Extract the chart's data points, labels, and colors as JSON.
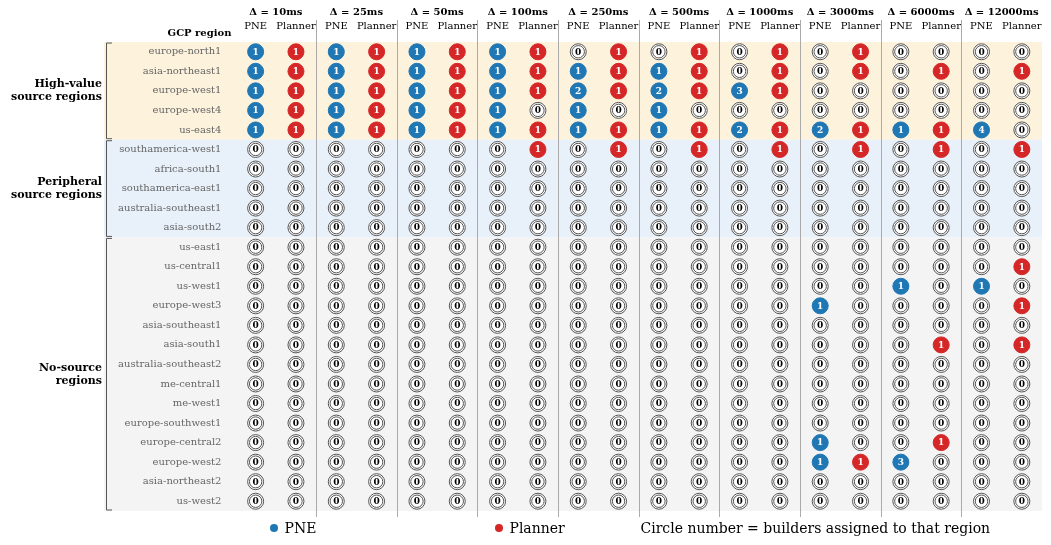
{
  "chart_data": {
    "type": "heatmap",
    "ylabel": "GCP region",
    "categories": [
      "PNE",
      "Planner",
      "PNE",
      "Planner",
      "PNE",
      "Planner",
      "PNE",
      "Planner",
      "PNE",
      "Planner",
      "PNE",
      "Planner",
      "PNE",
      "Planner",
      "PNE",
      "Planner",
      "PNE",
      "Planner",
      "PNE",
      "Planner"
    ],
    "colors": [
      "#1f77b4",
      "#d62728",
      "#1f77b4",
      "#d62728",
      "#1f77b4",
      "#d62728",
      "#1f77b4",
      "#d62728",
      "#1f77b4",
      "#d62728",
      "#1f77b4",
      "#d62728",
      "#1f77b4",
      "#d62728",
      "#1f77b4",
      "#d62728",
      "#1f77b4",
      "#d62728",
      "#1f77b4",
      "#d62728"
    ],
    "y_categories": [
      "europe-north1",
      "asia-northeast1",
      "europe-west1",
      "europe-west4",
      "us-east4",
      "southamerica-west1",
      "africa-south1",
      "southamerica-east1",
      "australia-southeast1",
      "asia-south2",
      "us-east1",
      "us-central1",
      "us-west1",
      "europe-west3",
      "asia-southeast1",
      "asia-south1",
      "australia-southeast2",
      "me-central1",
      "me-west1",
      "europe-southwest1",
      "europe-central2",
      "europe-west2",
      "asia-northeast2",
      "us-west2"
    ],
    "cells": [
      [
        1,
        1,
        1,
        1,
        1,
        1,
        1,
        1,
        0,
        1,
        0,
        1,
        0,
        1,
        0,
        1,
        0,
        0,
        0,
        0
      ],
      [
        1,
        1,
        1,
        1,
        1,
        1,
        1,
        1,
        1,
        1,
        1,
        1,
        0,
        1,
        0,
        1,
        0,
        1,
        0,
        1
      ],
      [
        1,
        1,
        1,
        1,
        1,
        1,
        1,
        1,
        2,
        1,
        2,
        1,
        3,
        1,
        0,
        0,
        0,
        0,
        0,
        0
      ],
      [
        1,
        1,
        1,
        1,
        1,
        1,
        1,
        0,
        1,
        0,
        1,
        0,
        0,
        0,
        0,
        0,
        0,
        0,
        0,
        0
      ],
      [
        1,
        1,
        1,
        1,
        1,
        1,
        1,
        1,
        1,
        1,
        1,
        1,
        2,
        1,
        2,
        1,
        1,
        1,
        4,
        0
      ],
      [
        0,
        0,
        0,
        0,
        0,
        0,
        0,
        1,
        0,
        1,
        0,
        1,
        0,
        1,
        0,
        1,
        0,
        1,
        0,
        1
      ],
      [
        0,
        0,
        0,
        0,
        0,
        0,
        0,
        0,
        0,
        0,
        0,
        0,
        0,
        0,
        0,
        0,
        0,
        0,
        0,
        0
      ],
      [
        0,
        0,
        0,
        0,
        0,
        0,
        0,
        0,
        0,
        0,
        0,
        0,
        0,
        0,
        0,
        0,
        0,
        0,
        0,
        0
      ],
      [
        0,
        0,
        0,
        0,
        0,
        0,
        0,
        0,
        0,
        0,
        0,
        0,
        0,
        0,
        0,
        0,
        0,
        0,
        0,
        0
      ],
      [
        0,
        0,
        0,
        0,
        0,
        0,
        0,
        0,
        0,
        0,
        0,
        0,
        0,
        0,
        0,
        0,
        0,
        0,
        0,
        0
      ],
      [
        0,
        0,
        0,
        0,
        0,
        0,
        0,
        0,
        0,
        0,
        0,
        0,
        0,
        0,
        0,
        0,
        0,
        0,
        0,
        0
      ],
      [
        0,
        0,
        0,
        0,
        0,
        0,
        0,
        0,
        0,
        0,
        0,
        0,
        0,
        0,
        0,
        0,
        0,
        0,
        0,
        1
      ],
      [
        0,
        0,
        0,
        0,
        0,
        0,
        0,
        0,
        0,
        0,
        0,
        0,
        0,
        0,
        0,
        0,
        1,
        0,
        1,
        0
      ],
      [
        0,
        0,
        0,
        0,
        0,
        0,
        0,
        0,
        0,
        0,
        0,
        0,
        0,
        0,
        1,
        0,
        0,
        0,
        0,
        1
      ],
      [
        0,
        0,
        0,
        0,
        0,
        0,
        0,
        0,
        0,
        0,
        0,
        0,
        0,
        0,
        0,
        0,
        0,
        0,
        0,
        0
      ],
      [
        0,
        0,
        0,
        0,
        0,
        0,
        0,
        0,
        0,
        0,
        0,
        0,
        0,
        0,
        0,
        0,
        0,
        1,
        0,
        1
      ],
      [
        0,
        0,
        0,
        0,
        0,
        0,
        0,
        0,
        0,
        0,
        0,
        0,
        0,
        0,
        0,
        0,
        0,
        0,
        0,
        0
      ],
      [
        0,
        0,
        0,
        0,
        0,
        0,
        0,
        0,
        0,
        0,
        0,
        0,
        0,
        0,
        0,
        0,
        0,
        0,
        0,
        0
      ],
      [
        0,
        0,
        0,
        0,
        0,
        0,
        0,
        0,
        0,
        0,
        0,
        0,
        0,
        0,
        0,
        0,
        0,
        0,
        0,
        0
      ],
      [
        0,
        0,
        0,
        0,
        0,
        0,
        0,
        0,
        0,
        0,
        0,
        0,
        0,
        0,
        0,
        0,
        0,
        0,
        0,
        0
      ],
      [
        0,
        0,
        0,
        0,
        0,
        0,
        0,
        0,
        0,
        0,
        0,
        0,
        0,
        0,
        1,
        0,
        0,
        1,
        0,
        0
      ],
      [
        0,
        0,
        0,
        0,
        0,
        0,
        0,
        0,
        0,
        0,
        0,
        0,
        0,
        0,
        1,
        1,
        3,
        0,
        0,
        0
      ],
      [
        0,
        0,
        0,
        0,
        0,
        0,
        0,
        0,
        0,
        0,
        0,
        0,
        0,
        0,
        0,
        0,
        0,
        0,
        0,
        0
      ],
      [
        0,
        0,
        0,
        0,
        0,
        0,
        0,
        0,
        0,
        0,
        0,
        0,
        0,
        0,
        0,
        0,
        0,
        0,
        0,
        0
      ]
    ],
    "bands": [
      {
        "axis": "y",
        "from": "europe-north1",
        "to": "us-east4",
        "label": "High-value source regions",
        "color": "#fdf2dc"
      },
      {
        "axis": "y",
        "from": "southamerica-west1",
        "to": "asia-south2",
        "label": "Peripheral source regions",
        "color": "#e8f0fa"
      },
      {
        "axis": "y",
        "from": "us-east1",
        "to": "us-west2",
        "label": "No-source regions",
        "color": "#f4f4f4"
      }
    ],
    "annotations": [
      "Δ = 10ms",
      "Δ = 25ms",
      "Δ = 50ms",
      "Δ = 100ms",
      "Δ = 250ms",
      "Δ = 500ms",
      "Δ = 1000ms",
      "Δ = 3000ms",
      "Δ = 6000ms",
      "Δ = 12000ms",
      "Circle number = builders assigned to that region"
    ],
    "data_labels": true
  }
}
